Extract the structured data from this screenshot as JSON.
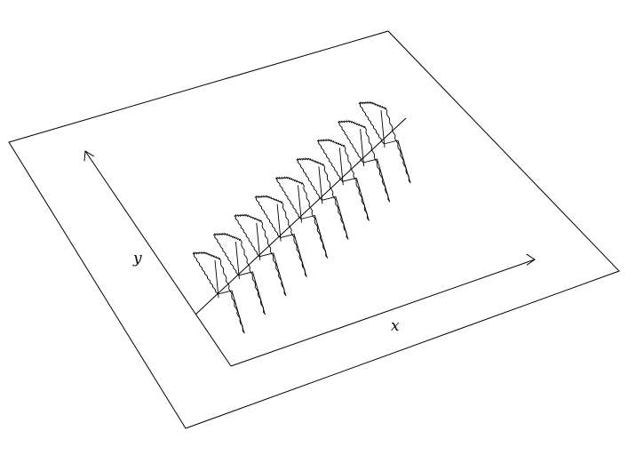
{
  "diagram": {
    "axes": {
      "x_label": "x",
      "y_label": "y"
    },
    "profile_count": 9,
    "line_color": "#000000",
    "background": "#ffffff"
  }
}
